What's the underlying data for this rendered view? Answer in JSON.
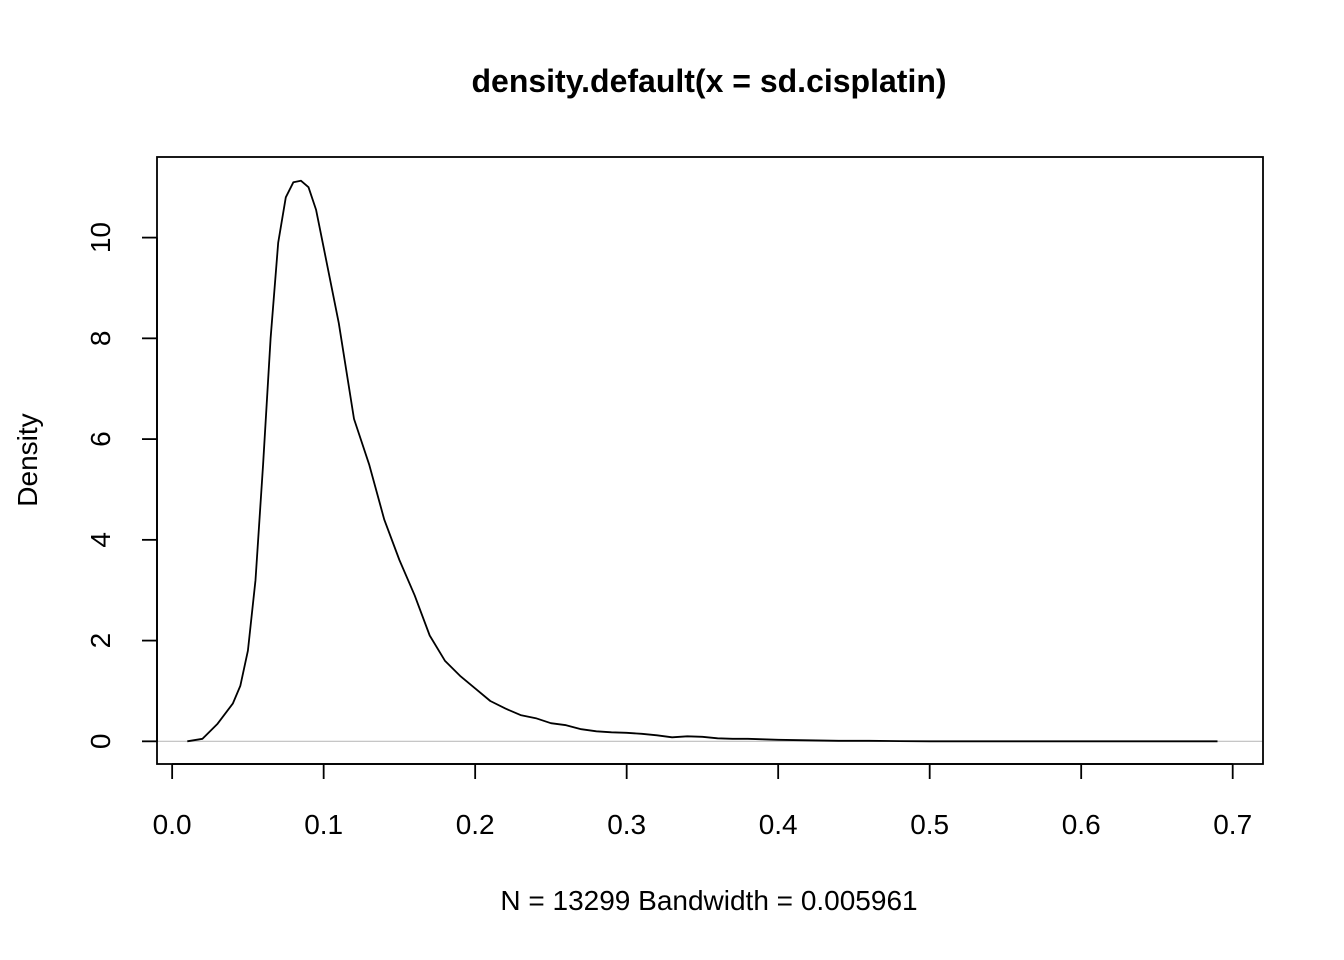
{
  "chart_data": {
    "type": "line",
    "title": "density.default(x = sd.cisplatin)",
    "xlabel": "N = 13299   Bandwidth = 0.005961",
    "ylabel": "Density",
    "xlim": [
      -0.01,
      0.72
    ],
    "ylim": [
      -0.45,
      11.6
    ],
    "xticks": [
      0.0,
      0.1,
      0.2,
      0.3,
      0.4,
      0.5,
      0.6,
      0.7
    ],
    "xtick_labels": [
      "0.0",
      "0.1",
      "0.2",
      "0.3",
      "0.4",
      "0.5",
      "0.6",
      "0.7"
    ],
    "yticks": [
      0,
      2,
      4,
      6,
      8,
      10
    ],
    "ytick_labels": [
      "0",
      "2",
      "4",
      "6",
      "8",
      "10"
    ],
    "baseline": 0,
    "grid": false,
    "series": [
      {
        "x": [
          0.01,
          0.02,
          0.03,
          0.04,
          0.045,
          0.05,
          0.055,
          0.06,
          0.065,
          0.07,
          0.075,
          0.08,
          0.085,
          0.09,
          0.095,
          0.1,
          0.11,
          0.12,
          0.13,
          0.14,
          0.15,
          0.16,
          0.17,
          0.18,
          0.19,
          0.2,
          0.21,
          0.22,
          0.23,
          0.24,
          0.25,
          0.26,
          0.27,
          0.28,
          0.29,
          0.3,
          0.31,
          0.32,
          0.33,
          0.34,
          0.35,
          0.36,
          0.37,
          0.38,
          0.39,
          0.4,
          0.42,
          0.44,
          0.46,
          0.48,
          0.5,
          0.55,
          0.6,
          0.65,
          0.69
        ],
        "y": [
          0.0,
          0.05,
          0.35,
          0.75,
          1.1,
          1.8,
          3.2,
          5.5,
          8.0,
          9.9,
          10.8,
          11.1,
          11.13,
          11.0,
          10.55,
          9.8,
          8.3,
          6.4,
          5.5,
          4.4,
          3.6,
          2.9,
          2.1,
          1.6,
          1.3,
          1.05,
          0.8,
          0.65,
          0.52,
          0.46,
          0.36,
          0.32,
          0.24,
          0.2,
          0.18,
          0.17,
          0.15,
          0.12,
          0.08,
          0.1,
          0.09,
          0.06,
          0.05,
          0.05,
          0.04,
          0.03,
          0.02,
          0.01,
          0.01,
          0.005,
          0.0,
          0.0,
          0.0,
          0.0,
          0.0
        ]
      }
    ]
  }
}
